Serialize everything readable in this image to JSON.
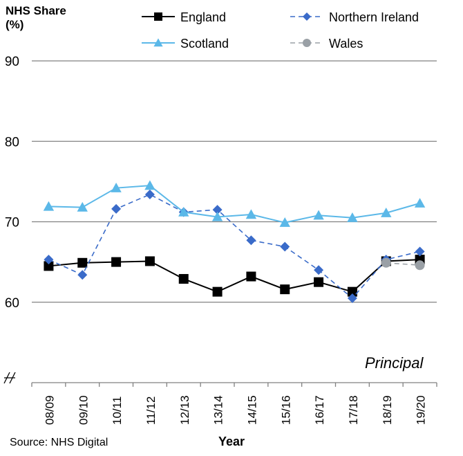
{
  "chart_data": {
    "type": "line",
    "ylabel_lines": [
      "NHS Share",
      "(%)"
    ],
    "xlabel": "Year",
    "annotation": "Principal",
    "source": "Source: NHS Digital",
    "x": [
      "08/09",
      "09/10",
      "10/11",
      "11/12",
      "12/13",
      "13/14",
      "14/15",
      "15/16",
      "16/17",
      "17/18",
      "18/19",
      "19/20"
    ],
    "ylim": [
      50,
      90
    ],
    "yticks": [
      60,
      70,
      80,
      90
    ],
    "axis_break": true,
    "grid": true,
    "legend_position": "top",
    "series": [
      {
        "name": "England",
        "color": "#000000",
        "dash": "solid",
        "marker": "square",
        "values": [
          64.5,
          64.9,
          65.0,
          65.1,
          62.9,
          61.3,
          63.2,
          61.6,
          62.5,
          61.3,
          65.1,
          65.3
        ]
      },
      {
        "name": "Northern Ireland",
        "color": "#3a6bc9",
        "dash": "dashed",
        "marker": "diamond",
        "values": [
          65.3,
          63.4,
          71.6,
          73.4,
          71.2,
          71.5,
          67.7,
          66.9,
          64.0,
          60.5,
          65.3,
          66.3
        ]
      },
      {
        "name": "Scotland",
        "color": "#5bb8e8",
        "dash": "solid",
        "marker": "triangle",
        "values": [
          71.9,
          71.8,
          74.2,
          74.5,
          71.2,
          70.6,
          70.9,
          69.9,
          70.8,
          70.5,
          71.1,
          72.3
        ]
      },
      {
        "name": "Wales",
        "color": "#9aa0a6",
        "dash": "dashed",
        "marker": "circle",
        "values": [
          null,
          null,
          null,
          null,
          null,
          null,
          null,
          null,
          null,
          null,
          64.9,
          64.6
        ]
      }
    ]
  }
}
